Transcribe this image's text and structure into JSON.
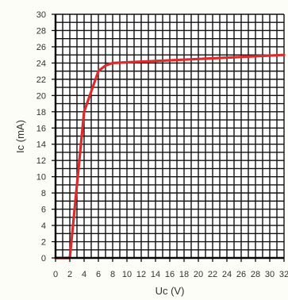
{
  "chart_data": {
    "type": "line",
    "xlabel": "Uc (V)",
    "ylabel": "Ic (mA)",
    "xlim": [
      0,
      32
    ],
    "ylim": [
      0,
      30
    ],
    "x_ticks": [
      0,
      2,
      4,
      6,
      8,
      10,
      12,
      14,
      16,
      18,
      20,
      22,
      24,
      26,
      28,
      30,
      32
    ],
    "y_ticks": [
      0,
      2,
      4,
      6,
      8,
      10,
      12,
      14,
      16,
      18,
      20,
      22,
      24,
      26,
      28,
      30
    ],
    "grid": true,
    "series": [
      {
        "color": "#dd2a2a",
        "points": [
          [
            0,
            0
          ],
          [
            2,
            0
          ],
          [
            4,
            18
          ],
          [
            6,
            23
          ],
          [
            7,
            23.7
          ],
          [
            8,
            24
          ],
          [
            32,
            25
          ]
        ]
      }
    ]
  }
}
